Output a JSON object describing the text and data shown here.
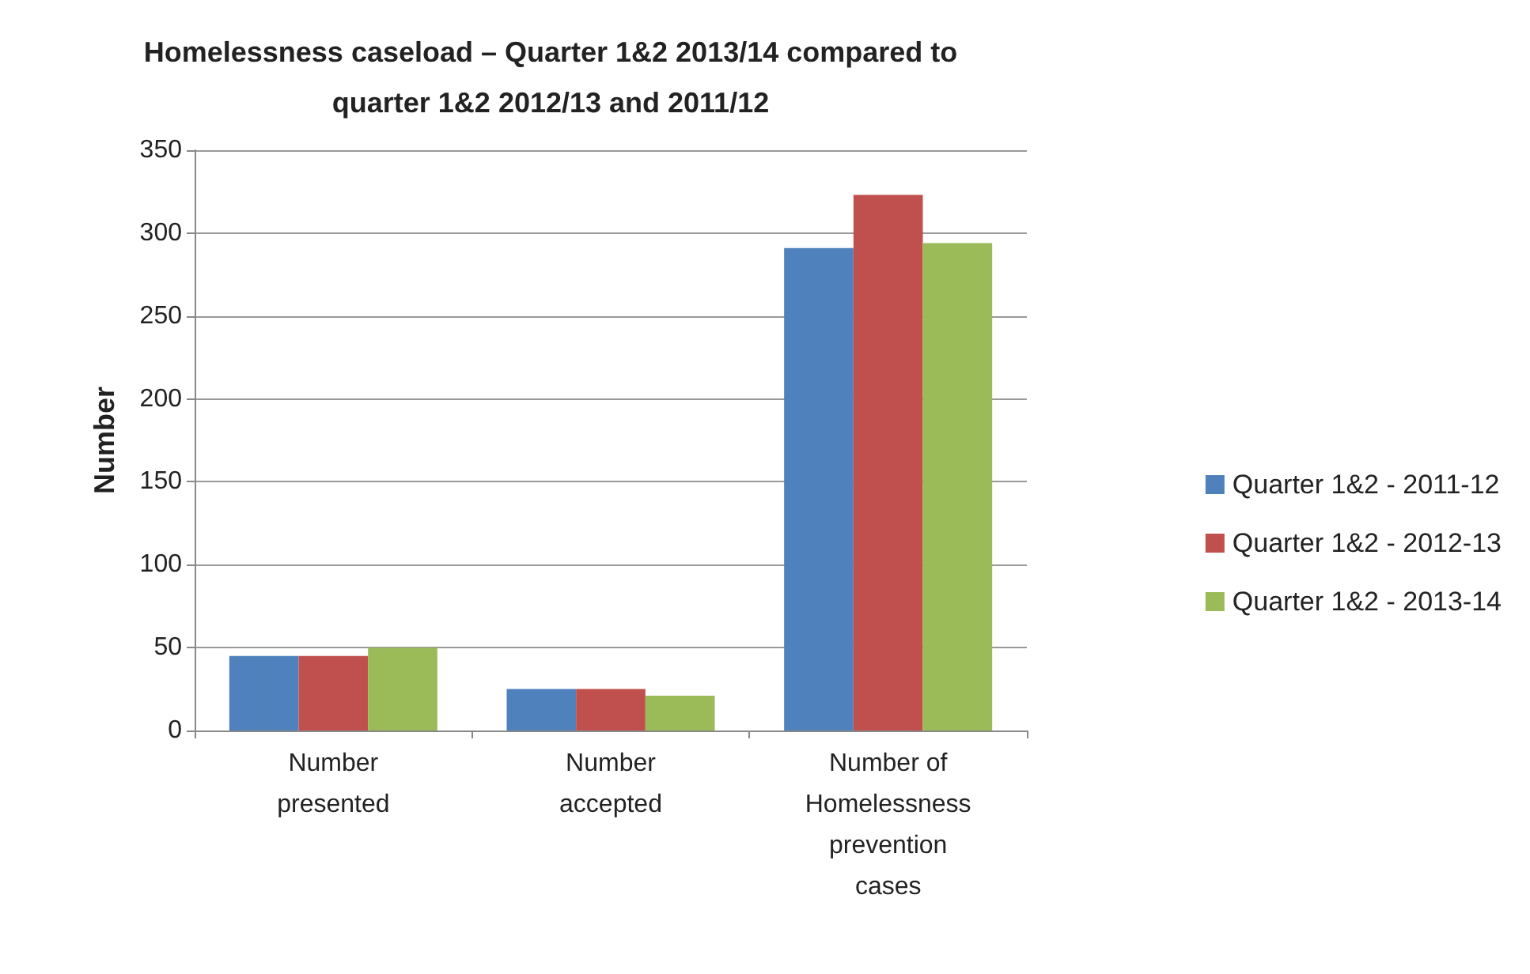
{
  "chart_data": {
    "type": "bar",
    "title": "Homelessness caseload – Quarter 1&2 2013/14 compared to\nquarter 1&2 2012/13 and 2011/12",
    "ylabel": "Number",
    "categories": [
      "Number\npresented",
      "Number\naccepted",
      "Number of\nHomelessness\nprevention\ncases"
    ],
    "series": [
      {
        "name": "Quarter 1&2 - 2011-12",
        "color": "#4f81bd",
        "values": [
          45,
          25,
          291
        ]
      },
      {
        "name": "Quarter 1&2 - 2012-13",
        "color": "#c0504d",
        "values": [
          45,
          25,
          323
        ]
      },
      {
        "name": "Quarter 1&2 - 2013-14",
        "color": "#9bbb59",
        "values": [
          50,
          21,
          294
        ]
      }
    ],
    "ylim": [
      0,
      350
    ],
    "yticks": [
      0,
      50,
      100,
      150,
      200,
      250,
      300,
      350
    ],
    "grid": "y",
    "legend": "right"
  }
}
